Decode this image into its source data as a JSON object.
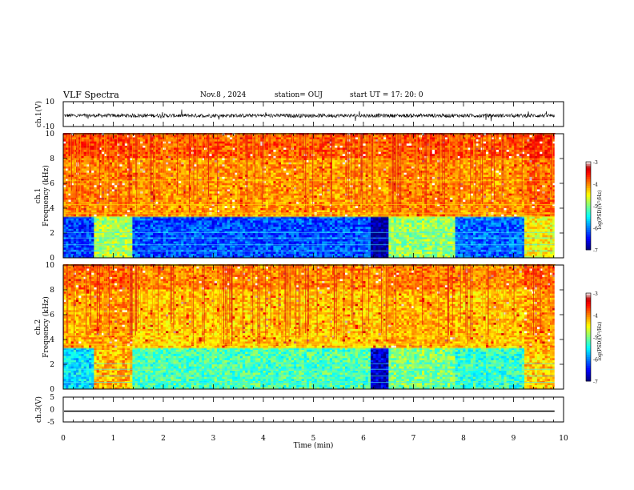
{
  "header": {
    "title": "VLF Spectra",
    "date": "Nov.8 , 2024",
    "station": "station= OUJ",
    "start": "start UT = 17: 20: 0"
  },
  "chart_data": [
    {
      "type": "line",
      "ylabel": "ch.1(V)",
      "ylim": [
        -10,
        10
      ],
      "yticks": [
        "10",
        "-10"
      ],
      "xlim": [
        0,
        10
      ],
      "description_of_signal": "noisy waveform centered near -1 V",
      "offset": -1.2,
      "noise_amplitude": 1.5
    },
    {
      "type": "heatmap",
      "ylabel": [
        "ch.1",
        "Frequency (kHz)"
      ],
      "ylim": [
        0,
        10
      ],
      "yticks": [
        "0",
        "2",
        "4",
        "6",
        "8",
        "10"
      ],
      "xlim": [
        0,
        10
      ],
      "colorbar": {
        "label": "log(PSD)(V²/Hz)",
        "ticks": [
          "-3",
          "-4",
          "-5",
          "-6",
          "-7"
        ],
        "range": [
          -7,
          -3
        ]
      },
      "segments": [
        {
          "t": [
            0,
            0.6
          ],
          "low": -6.3,
          "high": -4.0
        },
        {
          "t": [
            0.6,
            1.35
          ],
          "low": -4.8,
          "high": -4.0
        },
        {
          "t": [
            1.35,
            6.1
          ],
          "low": -6.2,
          "high": -4.1
        },
        {
          "t": [
            6.1,
            6.5
          ],
          "low": -6.9,
          "high": -4.1
        },
        {
          "t": [
            6.5,
            7.8
          ],
          "low": -4.9,
          "high": -4.0
        },
        {
          "t": [
            7.8,
            9.2
          ],
          "low": -6.1,
          "high": -4.1
        },
        {
          "t": [
            9.2,
            9.82
          ],
          "low": -4.5,
          "high": -3.9
        }
      ]
    },
    {
      "type": "heatmap",
      "ylabel": [
        "ch.2",
        "Frequency (kHz)"
      ],
      "ylim": [
        0,
        10
      ],
      "yticks": [
        "0",
        "2",
        "4",
        "6",
        "8",
        "10"
      ],
      "xlim": [
        0,
        10
      ],
      "colorbar": {
        "label": "log(PSD)(V²/Hz)",
        "ticks": [
          "-3",
          "-4",
          "-5",
          "-6",
          "-7"
        ],
        "range": [
          -7,
          -3
        ]
      },
      "segments": [
        {
          "t": [
            0,
            0.6
          ],
          "low": -5.6,
          "high": -4.2
        },
        {
          "t": [
            0.6,
            1.35
          ],
          "low": -4.2,
          "high": -4.1
        },
        {
          "t": [
            1.35,
            6.1
          ],
          "low": -5.2,
          "high": -4.3
        },
        {
          "t": [
            6.1,
            6.5
          ],
          "low": -6.7,
          "high": -4.3
        },
        {
          "t": [
            6.5,
            7.8
          ],
          "low": -5.0,
          "high": -4.2
        },
        {
          "t": [
            7.8,
            9.2
          ],
          "low": -5.3,
          "high": -4.3
        },
        {
          "t": [
            9.2,
            9.82
          ],
          "low": -4.3,
          "high": -4.1
        }
      ]
    },
    {
      "type": "line",
      "ylabel": "ch.3(V)",
      "ylim": [
        -5,
        5
      ],
      "yticks": [
        "5",
        "0",
        "-5"
      ],
      "xlim": [
        0,
        10
      ],
      "xticks": [
        "0",
        "1",
        "2",
        "3",
        "4",
        "5",
        "6",
        "7",
        "8",
        "9",
        "10"
      ],
      "xlabel": "Time (min)",
      "constant_value": 0
    }
  ]
}
